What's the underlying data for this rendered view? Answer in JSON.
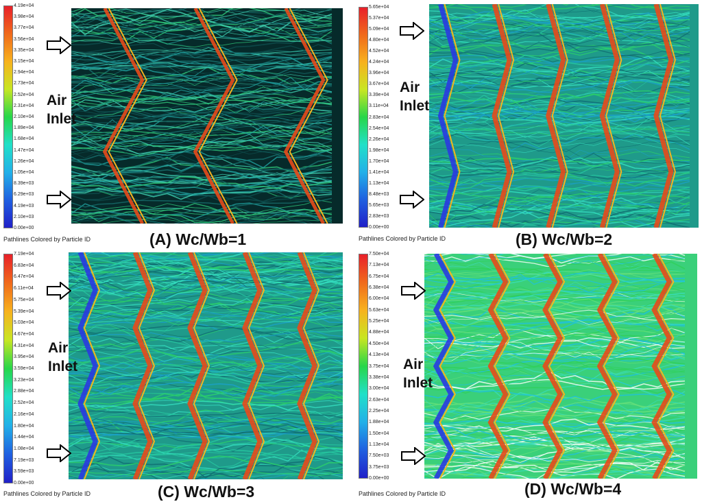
{
  "panels": [
    {
      "caption": "(A) Wc/Wb=1",
      "footnote": "Pathlines Colored by Particle ID",
      "inlet_label_1": "Air",
      "inlet_label_2": "Inlet",
      "colorbar_ticks": [
        "4.19e+04",
        "3.98e+04",
        "3.77e+04",
        "3.56e+04",
        "3.35e+04",
        "3.15e+04",
        "2.94e+04",
        "2.73e+04",
        "2.52e+04",
        "2.31e+04",
        "2.10e+04",
        "1.89e+04",
        "1.68e+04",
        "1.47e+04",
        "1.26e+04",
        "1.05e+04",
        "8.39e+03",
        "6.29e+03",
        "4.19e+03",
        "2.10e+03",
        "0.00e+00"
      ]
    },
    {
      "caption": "(B) Wc/Wb=2",
      "footnote": "Pathlines Colored by Particle ID",
      "inlet_label_1": "Air",
      "inlet_label_2": "Inlet",
      "colorbar_ticks": [
        "5.65e+04",
        "5.37e+04",
        "5.09e+04",
        "4.80e+04",
        "4.52e+04",
        "4.24e+04",
        "3.96e+04",
        "3.67e+04",
        "3.39e+04",
        "3.11e+04",
        "2.83e+04",
        "2.54e+04",
        "2.26e+04",
        "1.98e+04",
        "1.70e+04",
        "1.41e+04",
        "1.13e+04",
        "8.48e+03",
        "5.65e+03",
        "2.83e+03",
        "0.00e+00"
      ]
    },
    {
      "caption": "(C) Wc/Wb=3",
      "footnote": "Pathlines Colored by Particle ID",
      "inlet_label_1": "Air",
      "inlet_label_2": "Inlet",
      "colorbar_ticks": [
        "7.19e+04",
        "6.83e+04",
        "6.47e+04",
        "6.11e+04",
        "5.75e+04",
        "5.39e+04",
        "5.03e+04",
        "4.67e+04",
        "4.31e+04",
        "3.95e+04",
        "3.59e+04",
        "3.23e+04",
        "2.88e+04",
        "2.52e+04",
        "2.16e+04",
        "1.80e+04",
        "1.44e+04",
        "1.08e+04",
        "7.19e+03",
        "3.59e+03",
        "0.00e+00"
      ]
    },
    {
      "caption": "(D) Wc/Wb=4",
      "footnote": "Pathlines Colored by Particle ID",
      "inlet_label_1": "Air",
      "inlet_label_2": "Inlet",
      "colorbar_ticks": [
        "7.50e+04",
        "7.13e+04",
        "6.75e+04",
        "6.38e+04",
        "6.00e+04",
        "5.63e+04",
        "5.25e+04",
        "4.88e+04",
        "4.50e+04",
        "4.13e+04",
        "3.75e+04",
        "3.38e+04",
        "3.00e+04",
        "2.63e+04",
        "2.25e+04",
        "1.88e+04",
        "1.50e+04",
        "1.13e+04",
        "7.50e+03",
        "3.75e+03",
        "0.00e+00"
      ]
    }
  ],
  "colors": {
    "colormap": [
      "#e8202a",
      "#f06a1c",
      "#f7b21e",
      "#c8e623",
      "#27d64a",
      "#21e0c8",
      "#22b0e8",
      "#2060e0",
      "#2020c8"
    ],
    "background_dark": "#062a2a",
    "background_light": "#2fbf7a"
  },
  "icons": {
    "arrow": "outline-right-arrow-icon"
  }
}
